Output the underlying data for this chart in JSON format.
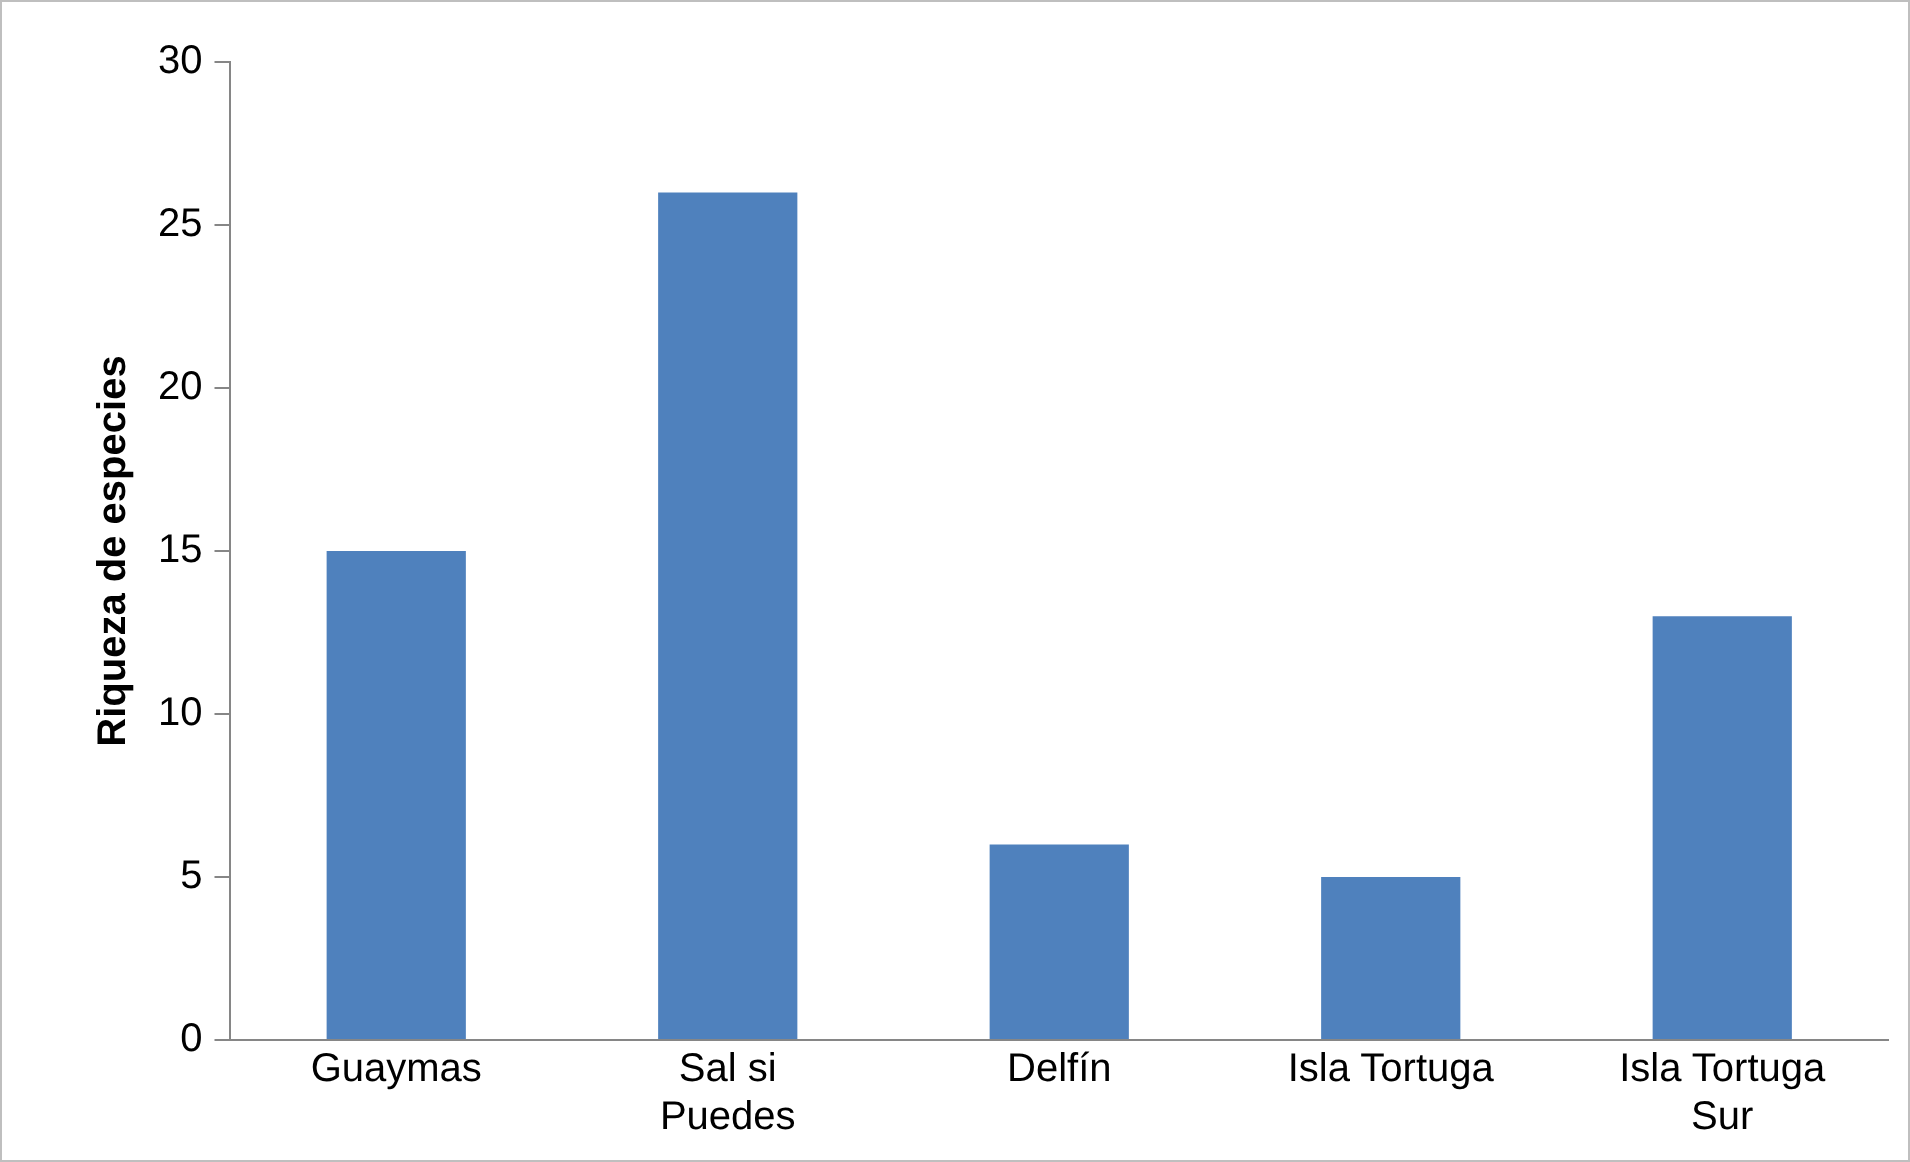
{
  "chart_data": {
    "type": "bar",
    "ylabel": "Riqueza de especies",
    "categories": [
      "Guaymas",
      "Sal si Puedes",
      "Delfín",
      "Isla Tortuga",
      "Isla Tortuga Sur"
    ],
    "values": [
      15,
      26,
      6,
      5,
      13
    ],
    "color": "#4f81bd",
    "ylim": [
      0,
      30
    ],
    "yticks": [
      0,
      5,
      10,
      15,
      20,
      25,
      30
    ],
    "grid": false,
    "legend": false
  }
}
